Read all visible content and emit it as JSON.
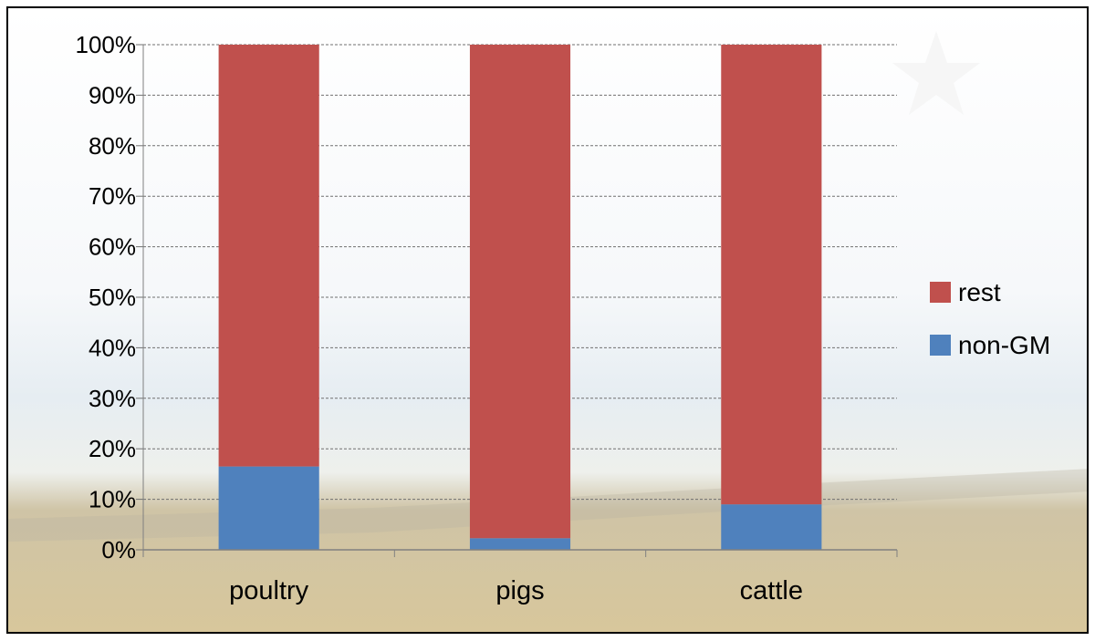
{
  "chart_data": {
    "type": "bar",
    "stacked": true,
    "categories": [
      "poultry",
      "pigs",
      "cattle"
    ],
    "series": [
      {
        "name": "non-GM",
        "color": "#4f81bd",
        "values": [
          16.5,
          2.3,
          9.0
        ]
      },
      {
        "name": "rest",
        "color": "#c0504d",
        "values": [
          83.5,
          97.7,
          91.0
        ]
      }
    ],
    "y_ticks": [
      "0%",
      "10%",
      "20%",
      "30%",
      "40%",
      "50%",
      "60%",
      "70%",
      "80%",
      "90%",
      "100%"
    ],
    "ylim": [
      0,
      100
    ],
    "grid": true,
    "legend_position": "right",
    "legend_order": [
      "rest",
      "non-GM"
    ],
    "title": "",
    "xlabel": "",
    "ylabel": ""
  },
  "background": {
    "sky_color": "#e6edf2",
    "field_color": "#d8c79b"
  }
}
